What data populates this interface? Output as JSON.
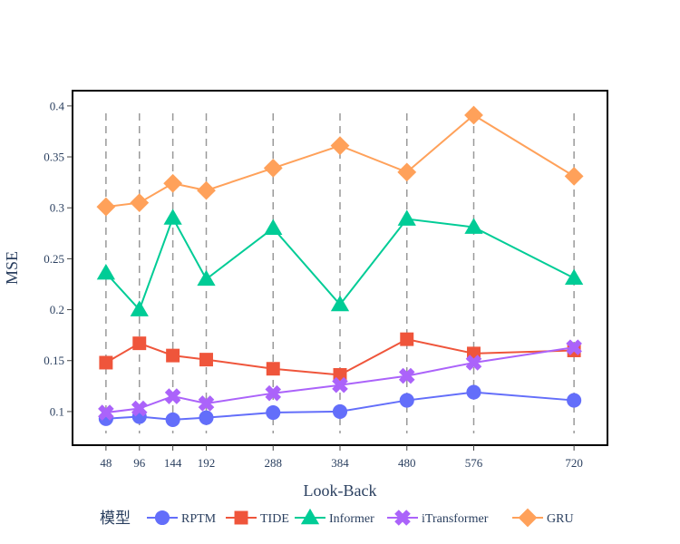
{
  "chart_data": {
    "type": "line",
    "xlabel": "Look-Back",
    "ylabel": "MSE",
    "x": [
      48,
      96,
      144,
      192,
      288,
      384,
      480,
      576,
      720
    ],
    "xlim": [
      0,
      768
    ],
    "ylim": [
      0.067,
      0.415
    ],
    "yticks": [
      0.1,
      0.15,
      0.2,
      0.25,
      0.3,
      0.35,
      0.4
    ],
    "ytick_labels": [
      "0.1",
      "0.15",
      "0.2",
      "0.25",
      "0.3",
      "0.35",
      "0.4"
    ],
    "vertical_dashed_lines_at": [
      48,
      96,
      144,
      192,
      288,
      384,
      480,
      576,
      720
    ],
    "vertical_line_color": "#999999",
    "grid": false,
    "legend": {
      "title": "模型",
      "placement": "bottom"
    },
    "series": [
      {
        "name": "RPTM",
        "marker": "circle",
        "color": "#636efa",
        "values": [
          0.093,
          0.095,
          0.092,
          0.094,
          0.099,
          0.1,
          0.111,
          0.119,
          0.111
        ]
      },
      {
        "name": "TIDE",
        "marker": "square",
        "color": "#ef553b",
        "values": [
          0.148,
          0.167,
          0.155,
          0.151,
          0.142,
          0.136,
          0.171,
          0.157,
          0.16
        ]
      },
      {
        "name": "Informer",
        "marker": "triangle-up",
        "color": "#00cc96",
        "values": [
          0.236,
          0.2,
          0.29,
          0.23,
          0.28,
          0.205,
          0.289,
          0.281,
          0.231
        ]
      },
      {
        "name": "iTransformer",
        "marker": "x",
        "color": "#ab63fa",
        "values": [
          0.099,
          0.103,
          0.115,
          0.108,
          0.118,
          0.126,
          0.135,
          0.148,
          0.163
        ]
      },
      {
        "name": "GRU",
        "marker": "diamond",
        "color": "#ffa15a",
        "values": [
          0.301,
          0.305,
          0.324,
          0.317,
          0.339,
          0.361,
          0.335,
          0.391,
          0.331
        ]
      }
    ]
  }
}
